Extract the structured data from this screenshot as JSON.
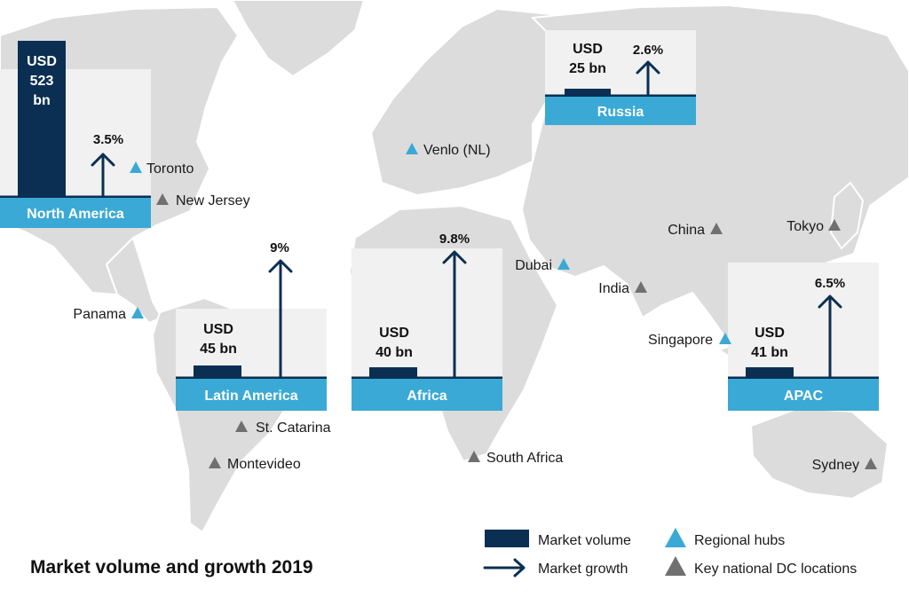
{
  "title": "Market volume and growth 2019",
  "colors": {
    "market_volume": "#0b2f52",
    "region_band": "#3aa9d6",
    "regional_hub": "#3aa9d6",
    "key_dc": "#707070",
    "land": "#dcdcdc"
  },
  "regions": [
    {
      "name": "North America",
      "volume_label": "USD 523 bn",
      "volume_lines": [
        "USD",
        "523",
        "bn"
      ],
      "volume_bn": 523,
      "growth_label": "3.5%",
      "growth_pct": 3.5
    },
    {
      "name": "Russia",
      "volume_label": "USD 25 bn",
      "volume_lines": [
        "USD",
        "25 bn"
      ],
      "volume_bn": 25,
      "growth_label": "2.6%",
      "growth_pct": 2.6
    },
    {
      "name": "Latin America",
      "volume_label": "USD 45 bn",
      "volume_lines": [
        "USD",
        "45 bn"
      ],
      "volume_bn": 45,
      "growth_label": "9%",
      "growth_pct": 9
    },
    {
      "name": "Africa",
      "volume_label": "USD 40 bn",
      "volume_lines": [
        "USD",
        "40 bn"
      ],
      "volume_bn": 40,
      "growth_label": "9.8%",
      "growth_pct": 9.8
    },
    {
      "name": "APAC",
      "volume_label": "USD 41 bn",
      "volume_lines": [
        "USD",
        "41 bn"
      ],
      "volume_bn": 41,
      "growth_label": "6.5%",
      "growth_pct": 6.5
    }
  ],
  "regional_hubs": [
    "Toronto",
    "Venlo (NL)",
    "Dubai",
    "Panama",
    "Singapore"
  ],
  "key_dc_locations": [
    "New Jersey",
    "China",
    "Tokyo",
    "India",
    "St. Catarina",
    "Montevideo",
    "South Africa",
    "Sydney"
  ],
  "legend": {
    "market_volume": "Market volume",
    "market_growth": "Market growth",
    "regional_hubs": "Regional hubs",
    "key_dc": "Key national DC locations"
  }
}
